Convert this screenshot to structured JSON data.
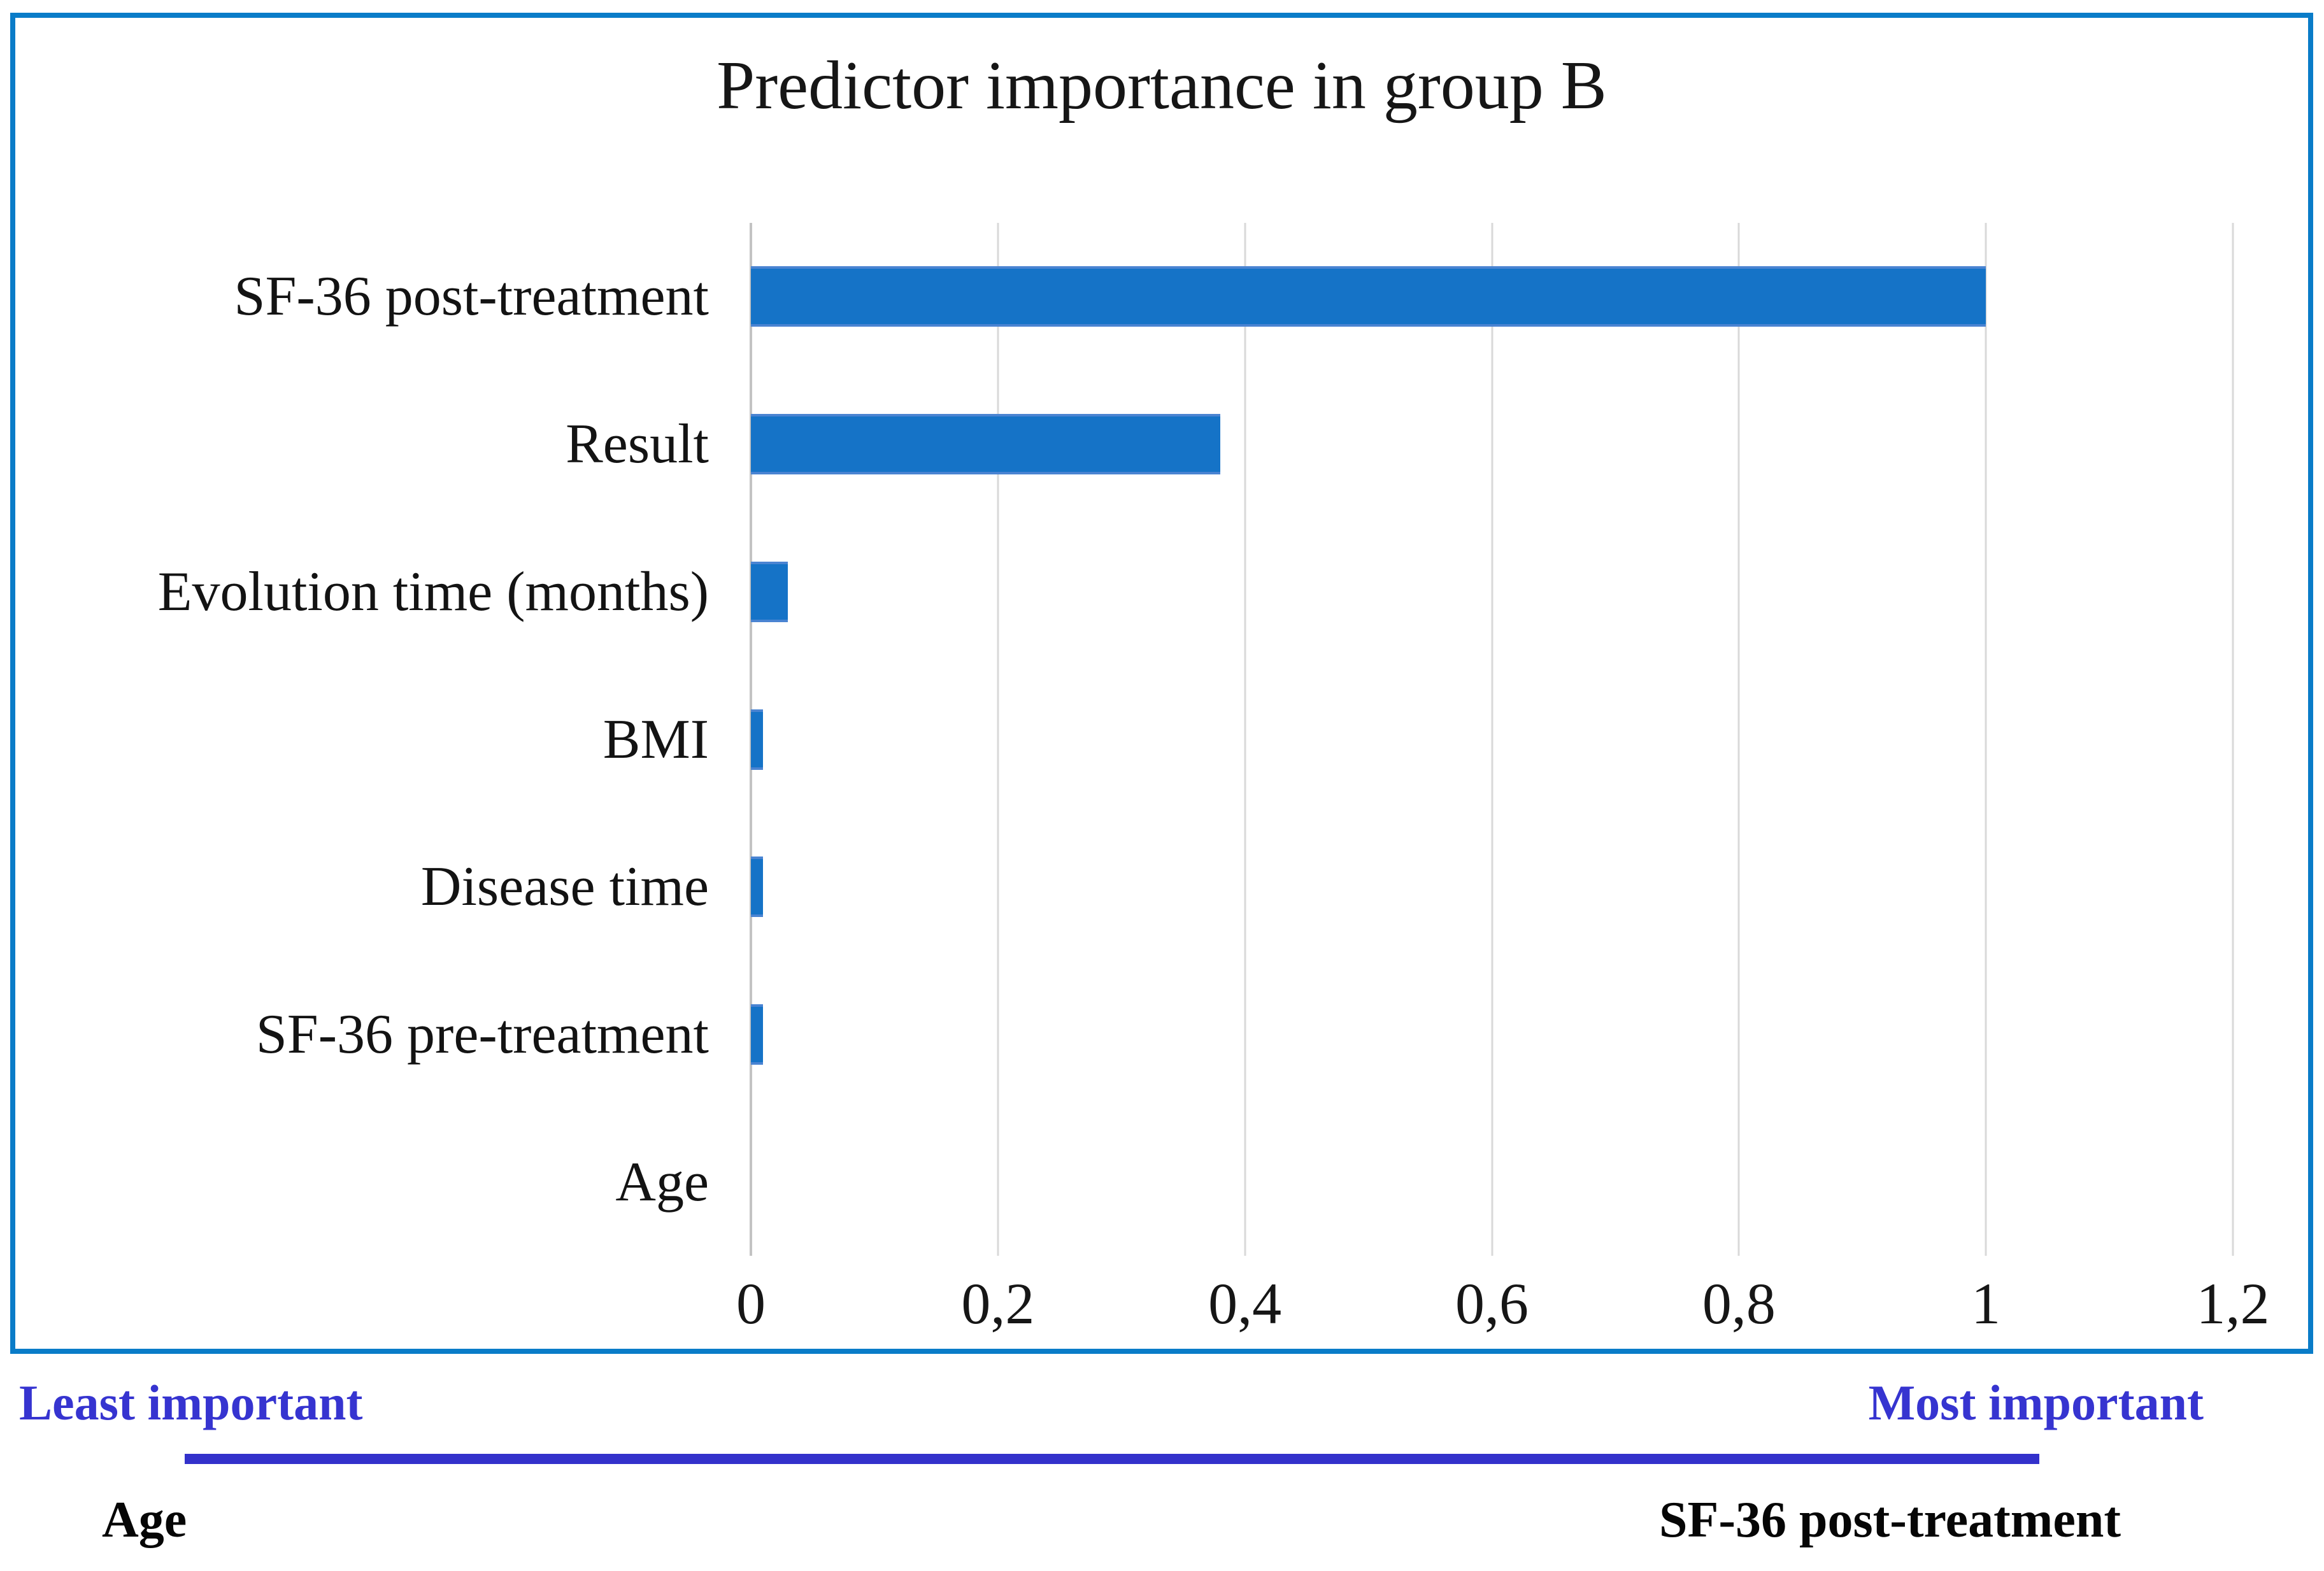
{
  "chart_data": {
    "type": "bar",
    "orientation": "horizontal",
    "title": "Predictor importance in group B",
    "categories": [
      "SF-36 post-treatment",
      "Result",
      "Evolution time (months)",
      "BMI",
      "Disease time",
      "SF-36 pre-treatment",
      "Age"
    ],
    "values": [
      1.0,
      0.38,
      0.03,
      0.01,
      0.01,
      0.01,
      0
    ],
    "xlim": [
      0,
      1.2
    ],
    "x_tick_labels": [
      "0",
      "0,2",
      "0,4",
      "0,6",
      "0,8",
      "1",
      "1,2"
    ],
    "x_tick_values": [
      0,
      0.2,
      0.4,
      0.6,
      0.8,
      1.0,
      1.2
    ],
    "grid": "vertical-only",
    "legend": "none",
    "bar_color": "#1573c7",
    "frame_color": "#0a7cc8"
  },
  "footer": {
    "least_label": "Least important",
    "most_label": "Most important",
    "left_item": "Age",
    "right_item": "SF-36 post-treatment",
    "text_color": "#3634d0",
    "line_color": "#3331cb"
  }
}
